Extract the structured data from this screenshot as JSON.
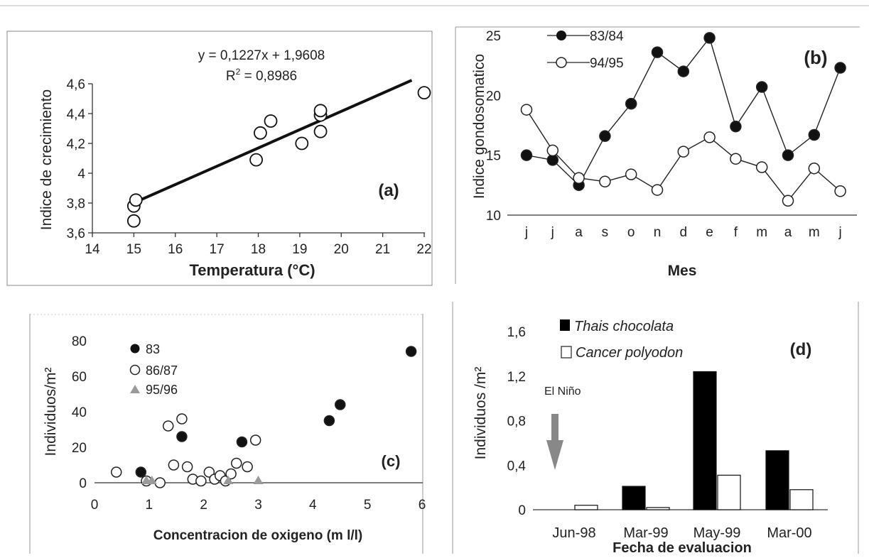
{
  "chart_data": [
    {
      "panel": "(a)",
      "type": "scatter",
      "xlabel": "Temperatura (°C)",
      "ylabel": "Indice de crecimiento",
      "xlim": [
        14,
        22
      ],
      "ylim": [
        3.6,
        4.6
      ],
      "x_ticks": [
        "14",
        "15",
        "16",
        "17",
        "18",
        "19",
        "20",
        "21",
        "22"
      ],
      "y_ticks": [
        "3,6",
        "3,8",
        "4",
        "4,2",
        "4,4",
        "4,6"
      ],
      "points": [
        {
          "x": 15.0,
          "y": 3.68
        },
        {
          "x": 15.0,
          "y": 3.78
        },
        {
          "x": 15.05,
          "y": 3.82
        },
        {
          "x": 17.95,
          "y": 4.09
        },
        {
          "x": 18.05,
          "y": 4.27
        },
        {
          "x": 18.3,
          "y": 4.35
        },
        {
          "x": 19.05,
          "y": 4.2
        },
        {
          "x": 19.5,
          "y": 4.28
        },
        {
          "x": 19.5,
          "y": 4.39
        },
        {
          "x": 19.5,
          "y": 4.42
        },
        {
          "x": 22.0,
          "y": 4.54
        }
      ],
      "trendline": {
        "slope": 0.1227,
        "intercept": 1.9608,
        "x_range": [
          15,
          21.7
        ]
      },
      "annotations": {
        "equation": "y = 0,1227x + 1,9608",
        "r2_prefix": "R",
        "r2_exp": "2",
        "r2_value": " = 0,8986"
      }
    },
    {
      "panel": "(b)",
      "type": "line",
      "xlabel": "Mes",
      "ylabel": "Indice gondosomatico",
      "ylim": [
        10,
        25
      ],
      "y_ticks": [
        "10",
        "15",
        "20",
        "25"
      ],
      "categories": [
        "j",
        "j",
        "a",
        "s",
        "o",
        "n",
        "d",
        "e",
        "f",
        "m",
        "a",
        "m",
        "j"
      ],
      "series": [
        {
          "name": "83/84",
          "marker": "filled",
          "values": [
            15.0,
            14.6,
            12.5,
            16.6,
            19.3,
            23.6,
            22.0,
            24.8,
            17.4,
            20.7,
            15.0,
            16.7,
            22.3
          ]
        },
        {
          "name": "94/95",
          "marker": "open",
          "values": [
            18.8,
            15.4,
            13.1,
            12.8,
            13.4,
            12.1,
            15.3,
            16.5,
            14.7,
            14.0,
            11.2,
            13.9,
            12.0
          ]
        }
      ]
    },
    {
      "panel": "(c)",
      "type": "scatter",
      "xlabel": "Concentracion de oxigeno (m l/l)",
      "ylabel": "Individuos/m²",
      "xlim": [
        0,
        6
      ],
      "ylim": [
        0,
        80
      ],
      "x_ticks": [
        "0",
        "1",
        "2",
        "3",
        "4",
        "5",
        "6"
      ],
      "y_ticks": [
        "0",
        "20",
        "40",
        "60",
        "80"
      ],
      "series": [
        {
          "name": "83",
          "marker": "filled",
          "points": [
            {
              "x": 0.85,
              "y": 6
            },
            {
              "x": 1.6,
              "y": 26
            },
            {
              "x": 2.7,
              "y": 23
            },
            {
              "x": 4.3,
              "y": 35
            },
            {
              "x": 4.5,
              "y": 44
            },
            {
              "x": 5.8,
              "y": 74
            }
          ]
        },
        {
          "name": "86/87",
          "marker": "open",
          "points": [
            {
              "x": 0.4,
              "y": 6
            },
            {
              "x": 0.95,
              "y": 1
            },
            {
              "x": 1.2,
              "y": 0
            },
            {
              "x": 1.35,
              "y": 32
            },
            {
              "x": 1.45,
              "y": 10
            },
            {
              "x": 1.6,
              "y": 36
            },
            {
              "x": 1.7,
              "y": 9
            },
            {
              "x": 1.8,
              "y": 2
            },
            {
              "x": 1.95,
              "y": 1
            },
            {
              "x": 2.1,
              "y": 6
            },
            {
              "x": 2.2,
              "y": 2
            },
            {
              "x": 2.3,
              "y": 4
            },
            {
              "x": 2.4,
              "y": 1
            },
            {
              "x": 2.5,
              "y": 5
            },
            {
              "x": 2.6,
              "y": 11
            },
            {
              "x": 2.8,
              "y": 9
            },
            {
              "x": 2.95,
              "y": 24
            }
          ]
        },
        {
          "name": "95/96",
          "marker": "triangle",
          "points": [
            {
              "x": 0.95,
              "y": 0
            },
            {
              "x": 1.05,
              "y": 0
            },
            {
              "x": 2.45,
              "y": 0
            },
            {
              "x": 3.0,
              "y": 0
            }
          ]
        }
      ]
    },
    {
      "panel": "(d)",
      "type": "bar",
      "xlabel": "Fecha de evaluacion",
      "ylabel": "Individuos /m²",
      "ylim": [
        0,
        1.6
      ],
      "y_ticks": [
        "0",
        "0,4",
        "0,8",
        "1,2",
        "1,6"
      ],
      "categories": [
        "Jun-98",
        "Mar-99",
        "May-99",
        "Mar-00"
      ],
      "series": [
        {
          "name": "Thais chocolata",
          "fill": "#000000",
          "values": [
            0.0,
            0.21,
            1.24,
            0.53
          ]
        },
        {
          "name": "Cancer polyodon",
          "fill": "#ffffff",
          "values": [
            0.04,
            0.02,
            0.31,
            0.18
          ]
        }
      ],
      "annotations": {
        "event": "El Niño"
      }
    }
  ],
  "colors": {
    "ink": "#111111",
    "marker_fill": "#ffffff",
    "triangle": "#9a9a9a"
  }
}
